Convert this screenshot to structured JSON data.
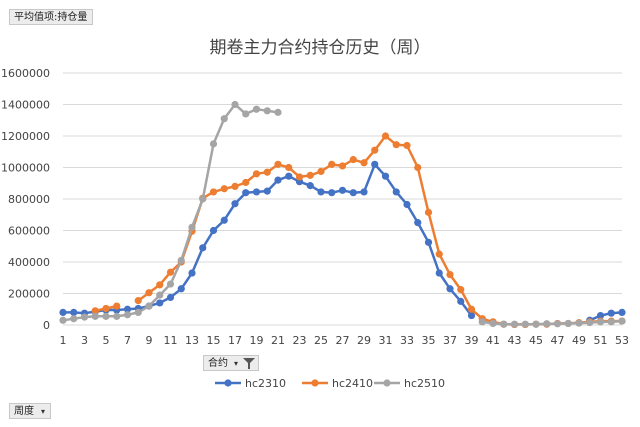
{
  "pivot": {
    "value_field": "平均值项:持仓量",
    "series_field": "合约",
    "category_field": "周度"
  },
  "chart_data": {
    "type": "line",
    "title": "期卷主力合约持仓历史（周）",
    "xlabel": "",
    "ylabel": "",
    "ylim": [
      0,
      1600000
    ],
    "yticks": [
      "0",
      "200000",
      "400000",
      "600000",
      "800000",
      "1000000",
      "1200000",
      "1400000",
      "1600000"
    ],
    "xticks": [
      1,
      3,
      5,
      7,
      9,
      11,
      13,
      15,
      17,
      19,
      21,
      23,
      25,
      27,
      29,
      31,
      33,
      35,
      37,
      39,
      41,
      43,
      45,
      47,
      49,
      51,
      53
    ],
    "legend_position": "bottom",
    "grid": true,
    "series": [
      {
        "name": "hc2310",
        "color": "#4472C4",
        "points": [
          [
            1,
            80000
          ],
          [
            2,
            80000
          ],
          [
            3,
            75000
          ],
          [
            4,
            85000
          ],
          [
            5,
            95000
          ],
          [
            6,
            95000
          ],
          [
            7,
            100000
          ],
          [
            8,
            105000
          ],
          [
            9,
            120000
          ],
          [
            10,
            140000
          ],
          [
            11,
            175000
          ],
          [
            12,
            230000
          ],
          [
            13,
            330000
          ],
          [
            14,
            490000
          ],
          [
            15,
            600000
          ],
          [
            16,
            665000
          ],
          [
            17,
            770000
          ],
          [
            18,
            840000
          ],
          [
            19,
            845000
          ],
          [
            20,
            850000
          ],
          [
            21,
            920000
          ],
          [
            22,
            945000
          ],
          [
            23,
            910000
          ],
          [
            24,
            885000
          ],
          [
            25,
            845000
          ],
          [
            26,
            840000
          ],
          [
            27,
            855000
          ],
          [
            28,
            840000
          ],
          [
            29,
            845000
          ],
          [
            30,
            1020000
          ],
          [
            31,
            945000
          ],
          [
            32,
            845000
          ],
          [
            33,
            765000
          ],
          [
            34,
            650000
          ],
          [
            35,
            525000
          ],
          [
            36,
            330000
          ],
          [
            37,
            230000
          ],
          [
            38,
            150000
          ],
          [
            39,
            60000
          ],
          [
            50,
            30000
          ],
          [
            51,
            60000
          ],
          [
            52,
            75000
          ],
          [
            53,
            80000
          ]
        ]
      },
      {
        "name": "hc2410",
        "color": "#ED7D31",
        "points": [
          [
            4,
            90000
          ],
          [
            5,
            105000
          ],
          [
            6,
            120000
          ],
          [
            8,
            155000
          ],
          [
            9,
            205000
          ],
          [
            10,
            255000
          ],
          [
            11,
            335000
          ],
          [
            12,
            400000
          ],
          [
            13,
            595000
          ],
          [
            14,
            805000
          ],
          [
            15,
            845000
          ],
          [
            16,
            865000
          ],
          [
            17,
            880000
          ],
          [
            18,
            905000
          ],
          [
            19,
            960000
          ],
          [
            20,
            970000
          ],
          [
            21,
            1020000
          ],
          [
            22,
            1000000
          ],
          [
            23,
            940000
          ],
          [
            24,
            950000
          ],
          [
            25,
            975000
          ],
          [
            26,
            1020000
          ],
          [
            27,
            1010000
          ],
          [
            28,
            1050000
          ],
          [
            29,
            1030000
          ],
          [
            30,
            1110000
          ],
          [
            31,
            1200000
          ],
          [
            32,
            1145000
          ],
          [
            33,
            1140000
          ],
          [
            34,
            1000000
          ],
          [
            35,
            715000
          ],
          [
            36,
            450000
          ],
          [
            37,
            320000
          ],
          [
            38,
            225000
          ],
          [
            39,
            100000
          ],
          [
            40,
            40000
          ],
          [
            41,
            20000
          ],
          [
            42,
            5000
          ],
          [
            43,
            3000
          ],
          [
            44,
            3000
          ],
          [
            45,
            5000
          ],
          [
            46,
            5000
          ],
          [
            47,
            10000
          ],
          [
            48,
            10000
          ],
          [
            49,
            15000
          ],
          [
            50,
            20000
          ],
          [
            51,
            25000
          ],
          [
            52,
            25000
          ],
          [
            53,
            25000
          ]
        ]
      },
      {
        "name": "hc2510",
        "color": "#A5A5A5",
        "points": [
          [
            1,
            30000
          ],
          [
            2,
            40000
          ],
          [
            3,
            50000
          ],
          [
            4,
            55000
          ],
          [
            5,
            55000
          ],
          [
            6,
            55000
          ],
          [
            7,
            65000
          ],
          [
            8,
            80000
          ],
          [
            9,
            120000
          ],
          [
            10,
            190000
          ],
          [
            11,
            260000
          ],
          [
            12,
            410000
          ],
          [
            13,
            620000
          ],
          [
            14,
            800000
          ],
          [
            15,
            1150000
          ],
          [
            16,
            1310000
          ],
          [
            17,
            1400000
          ],
          [
            18,
            1340000
          ],
          [
            19,
            1370000
          ],
          [
            20,
            1360000
          ],
          [
            21,
            1350000
          ],
          [
            40,
            20000
          ],
          [
            41,
            10000
          ],
          [
            42,
            5000
          ],
          [
            43,
            5000
          ],
          [
            44,
            5000
          ],
          [
            45,
            5000
          ],
          [
            46,
            8000
          ],
          [
            47,
            8000
          ],
          [
            48,
            10000
          ],
          [
            49,
            12000
          ],
          [
            50,
            15000
          ],
          [
            51,
            20000
          ],
          [
            52,
            20000
          ],
          [
            53,
            25000
          ]
        ]
      }
    ]
  }
}
